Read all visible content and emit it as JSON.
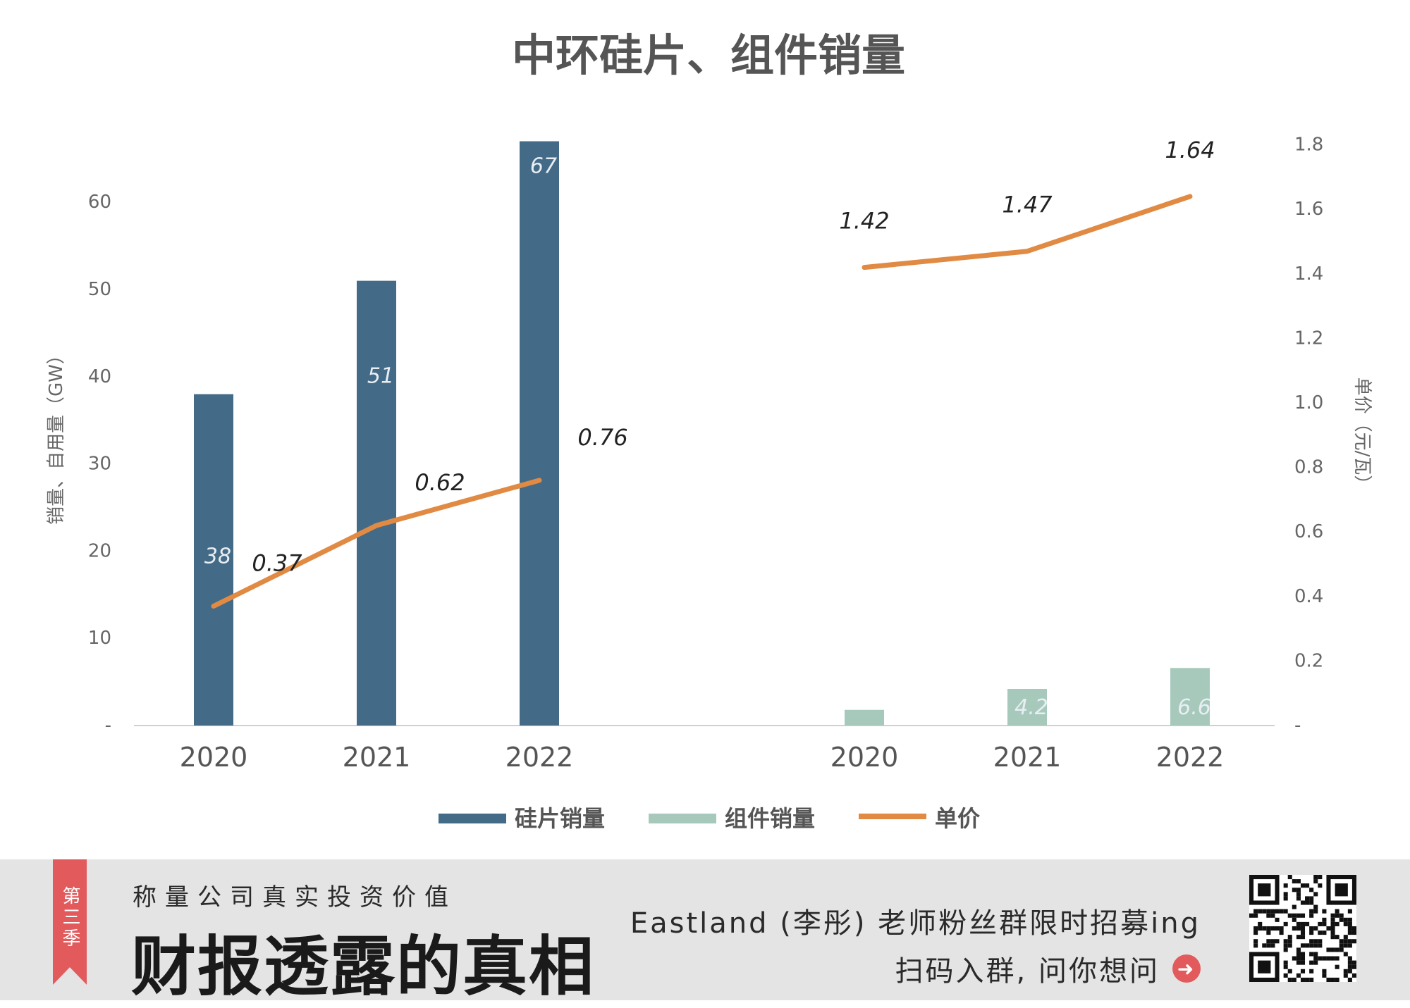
{
  "chart_data": {
    "type": "bar",
    "title": "中环硅片、组件销量",
    "ylabel_left": "销量、自用量（GW）",
    "ylabel_right": "单价（元/瓦）",
    "ylim_left": [
      0,
      70
    ],
    "ylim_right": [
      0,
      1.8
    ],
    "left_ticks": [
      "-",
      "10",
      "20",
      "30",
      "40",
      "50",
      "60"
    ],
    "right_ticks": [
      "-",
      "0.2",
      "0.4",
      "0.6",
      "0.8",
      "1.0",
      "1.2",
      "1.4",
      "1.6",
      "1.8"
    ],
    "grid": false,
    "legend_position": "bottom",
    "groups": [
      {
        "categories": [
          "2020",
          "2021",
          "2022"
        ],
        "bar_series": {
          "name": "硅片销量",
          "values": [
            38,
            51,
            67
          ],
          "labels": [
            "38",
            "51",
            "67"
          ],
          "color": "#436b87"
        },
        "line_series": {
          "name": "单价",
          "values": [
            0.37,
            0.62,
            0.76
          ],
          "labels": [
            "0.37",
            "0.62",
            "0.76"
          ],
          "color": "#e08a43"
        }
      },
      {
        "categories": [
          "2020",
          "2021",
          "2022"
        ],
        "bar_series": {
          "name": "组件销量",
          "values": [
            1.8,
            4.2,
            6.6
          ],
          "labels": [
            "",
            "4.2",
            "6.6"
          ],
          "color": "#a7c9bc"
        },
        "line_series": {
          "name": "单价",
          "values": [
            1.42,
            1.47,
            1.64
          ],
          "labels": [
            "1.42",
            "1.47",
            "1.64"
          ],
          "color": "#e08a43"
        }
      }
    ],
    "legend": [
      {
        "name": "硅片销量",
        "color": "#436b87"
      },
      {
        "name": "组件销量",
        "color": "#a7c9bc"
      },
      {
        "name": "单价",
        "color": "#e08a43"
      }
    ]
  },
  "banner": {
    "season": "第三季",
    "tagline": "称量公司真实投资价值",
    "headline": "财报透露的真相",
    "recruit": "Eastland (李彤) 老师粉丝群限时招募ing",
    "scan_text": "扫码入群, 问你想问",
    "arrow_icon": "arrow-right-circle-icon",
    "qr_icon": "qr-code-icon"
  }
}
